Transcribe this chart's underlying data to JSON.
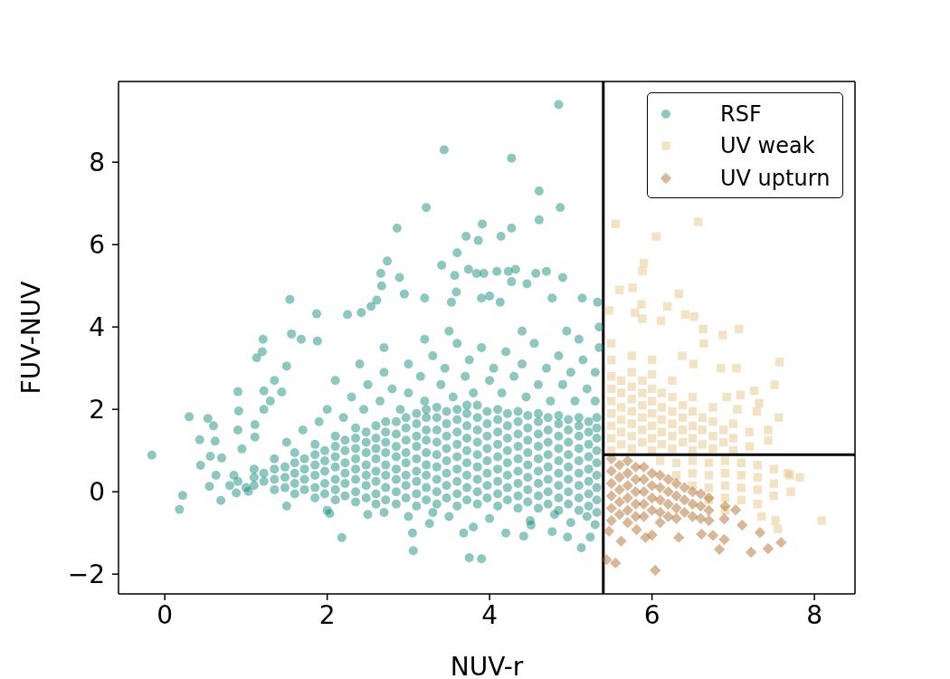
{
  "chart_data": {
    "type": "scatter",
    "xlabel": "NUV-r",
    "ylabel": "FUV-NUV",
    "xlim": [
      -0.57,
      8.5
    ],
    "ylim": [
      -2.48,
      9.96
    ],
    "xticks": [
      0,
      2,
      4,
      6,
      8
    ],
    "yticks": [
      {
        "value": -2,
        "label": "−2"
      },
      0,
      2,
      4,
      6,
      8
    ],
    "legend": "top right",
    "ref_lines": [
      {
        "axis": "x",
        "value": 5.4,
        "color": "#000000"
      }
    ],
    "series": [
      {
        "name": "RSF",
        "color": "#018571",
        "marker": "circle",
        "x": [
          4.85,
          3.44,
          4.27,
          4.61,
          3.22,
          4.87,
          4.61,
          2.86,
          3.91,
          4.27,
          3.71,
          3.86,
          4.14,
          2.74,
          3.41,
          3.6,
          2.66,
          2.89,
          3.74,
          3.84,
          3.93,
          4.09,
          4.23,
          4.32,
          4.57,
          4.7,
          4.9,
          2.67,
          3.57,
          4.27,
          4.46,
          2.95,
          3.2,
          3.59,
          3.53,
          3.9,
          4.0,
          4.13,
          4.77,
          5.14,
          5.33,
          2.25,
          2.42,
          2.54,
          2.61,
          1.54,
          1.87,
          1.21,
          1.56,
          1.68,
          1.88,
          1.2,
          1.13,
          1.5,
          1.35,
          0.9,
          1.22,
          1.3,
          1.44,
          0.91,
          1.22,
          0.3,
          0.53,
          0.6,
          0.43,
          0.62,
          -0.16,
          0.44,
          0.56,
          0.7,
          0.63,
          0.55,
          0.22,
          0.18,
          0.69,
          0.9,
          0.95,
          1.11,
          1.11,
          2.03,
          2.18,
          0.88,
          1.03,
          3.05,
          3.06,
          3.75,
          3.9,
          3.26,
          3.68,
          3.8,
          4.2,
          4.42,
          4.51,
          4.77,
          4.96,
          5.13,
          5.24,
          0.8,
          0.9,
          1.0,
          0.85,
          1.5,
          1.7,
          1.9,
          2.0,
          2.2,
          2.3,
          2.45,
          2.5,
          2.65,
          2.7,
          2.8,
          2.9,
          3.0,
          3.0,
          3.15,
          3.2,
          3.3,
          3.4,
          3.45,
          3.55,
          3.6,
          3.7,
          3.75,
          3.8,
          3.9,
          4.0,
          4.05,
          4.15,
          4.2,
          4.3,
          4.4,
          4.45,
          4.55,
          4.6,
          4.7,
          4.75,
          4.85,
          4.9,
          5.0,
          5.05,
          5.15,
          5.2,
          5.3,
          5.3,
          5.1,
          4.95,
          4.4,
          3.5,
          3.2,
          2.7,
          2.4,
          2.1,
          5.35,
          5.35,
          1.5,
          2.0,
          2.5,
          3.0,
          3.5,
          4.0,
          4.5,
          5.0,
          5.3,
          4.8,
          3.3,
          2.7,
          5.2,
          1.1,
          1.1,
          1.1,
          1.35,
          1.35,
          1.35,
          1.35,
          1.6,
          1.6,
          1.6,
          1.6,
          1.6,
          1.85,
          1.85,
          1.85,
          1.85,
          1.85,
          1.85,
          2.1,
          2.1,
          2.1,
          2.1,
          2.1,
          2.1,
          2.1,
          2.35,
          2.35,
          2.35,
          2.35,
          2.35,
          2.35,
          2.35,
          2.35,
          2.6,
          2.6,
          2.6,
          2.6,
          2.6,
          2.6,
          2.6,
          2.6,
          2.85,
          2.85,
          2.85,
          2.85,
          2.85,
          2.85,
          2.85,
          2.85,
          3.1,
          3.1,
          3.1,
          3.1,
          3.1,
          3.1,
          3.1,
          3.1,
          3.1,
          3.35,
          3.35,
          3.35,
          3.35,
          3.35,
          3.35,
          3.35,
          3.35,
          3.35,
          3.6,
          3.6,
          3.6,
          3.6,
          3.6,
          3.6,
          3.6,
          3.6,
          3.6,
          3.85,
          3.85,
          3.85,
          3.85,
          3.85,
          3.85,
          3.85,
          3.85,
          3.85,
          4.1,
          4.1,
          4.1,
          4.1,
          4.1,
          4.1,
          4.1,
          4.1,
          4.1,
          4.35,
          4.35,
          4.35,
          4.35,
          4.35,
          4.35,
          4.35,
          4.35,
          4.35,
          4.6,
          4.6,
          4.6,
          4.6,
          4.6,
          4.6,
          4.6,
          4.6,
          4.6,
          4.85,
          4.85,
          4.85,
          4.85,
          4.85,
          4.85,
          4.85,
          4.85,
          4.85,
          5.1,
          5.1,
          5.1,
          5.1,
          5.1,
          5.1,
          5.1,
          5.1,
          5.1,
          5.32,
          5.32,
          5.32,
          5.32,
          5.32,
          5.32,
          5.32,
          5.32,
          5.32,
          1.22,
          1.22,
          1.48,
          1.48,
          1.48,
          1.72,
          1.72,
          1.72,
          1.72,
          1.97,
          1.97,
          1.97,
          1.97,
          1.97,
          2.22,
          2.22,
          2.22,
          2.22,
          2.22,
          2.22,
          2.48,
          2.48,
          2.48,
          2.48,
          2.48,
          2.48,
          2.48,
          2.72,
          2.72,
          2.72,
          2.72,
          2.72,
          2.72,
          2.72,
          2.72,
          2.97,
          2.97,
          2.97,
          2.97,
          2.97,
          2.97,
          2.97,
          2.97,
          3.22,
          3.22,
          3.22,
          3.22,
          3.22,
          3.22,
          3.22,
          3.22,
          3.22,
          3.47,
          3.47,
          3.47,
          3.47,
          3.47,
          3.47,
          3.47,
          3.47,
          3.72,
          3.72,
          3.72,
          3.72,
          3.72,
          3.72,
          3.72,
          3.72,
          3.72,
          3.97,
          3.97,
          3.97,
          3.97,
          3.97,
          3.97,
          3.97,
          3.97,
          4.22,
          4.22,
          4.22,
          4.22,
          4.22,
          4.22,
          4.22,
          4.22,
          4.47,
          4.47,
          4.47,
          4.47,
          4.47,
          4.47,
          4.47,
          4.47,
          4.72,
          4.72,
          4.72,
          4.72,
          4.72,
          4.72,
          4.72,
          4.72,
          4.97,
          4.97,
          4.97,
          4.97,
          4.97,
          4.97,
          4.97,
          4.97,
          5.22,
          5.22,
          5.22,
          5.22,
          5.22,
          5.22,
          5.22,
          5.22
        ],
        "values": [
          9.4,
          8.3,
          8.1,
          7.3,
          6.9,
          6.9,
          6.6,
          6.4,
          6.5,
          6.4,
          6.2,
          6.1,
          6.2,
          5.6,
          5.5,
          5.8,
          5.3,
          5.2,
          5.4,
          5.3,
          5.3,
          5.35,
          5.35,
          5.4,
          5.3,
          5.35,
          5.2,
          5.0,
          5.25,
          5.1,
          5.05,
          4.8,
          4.7,
          4.85,
          4.6,
          4.7,
          4.75,
          4.6,
          4.7,
          4.7,
          4.6,
          4.3,
          4.35,
          4.5,
          4.65,
          4.67,
          4.32,
          3.7,
          3.83,
          3.7,
          3.66,
          3.4,
          3.25,
          3.05,
          2.7,
          2.43,
          2.45,
          2.2,
          2.42,
          1.96,
          2.0,
          1.82,
          1.78,
          1.6,
          1.26,
          1.23,
          0.89,
          0.64,
          0.86,
          0.82,
          0.4,
          0.13,
          -0.09,
          -0.43,
          -0.21,
          1.5,
          1.04,
          1.63,
          1.33,
          -0.53,
          -1.11,
          -0.03,
          0.01,
          -1.0,
          -1.43,
          -1.6,
          -1.63,
          -0.77,
          -1.0,
          -0.86,
          -1.0,
          -1.08,
          -0.81,
          -0.97,
          -1.1,
          -1.36,
          -1.1,
          0.15,
          0.25,
          0.1,
          0.4,
          1.2,
          1.5,
          1.7,
          2.0,
          1.8,
          2.3,
          2.0,
          2.6,
          2.2,
          2.9,
          2.5,
          2.0,
          3.1,
          2.4,
          2.8,
          2.2,
          3.3,
          2.6,
          3.0,
          2.3,
          3.6,
          2.8,
          3.2,
          2.4,
          3.5,
          2.7,
          3.0,
          2.4,
          3.4,
          2.8,
          3.1,
          2.3,
          3.6,
          2.6,
          3.0,
          2.2,
          3.3,
          2.6,
          2.9,
          2.2,
          3.2,
          2.5,
          2.9,
          2.2,
          3.7,
          3.9,
          3.9,
          3.9,
          3.7,
          3.5,
          3.1,
          2.7,
          3.5,
          4.0,
          -0.35,
          -0.45,
          -0.55,
          -0.6,
          -0.6,
          -0.65,
          -0.7,
          -0.75,
          -0.8,
          -0.55,
          -0.5,
          -0.5,
          -0.6,
          0.15,
          0.35,
          0.55,
          0.05,
          0.3,
          0.55,
          0.8,
          -0.05,
          0.2,
          0.45,
          0.7,
          0.95,
          -0.15,
          0.1,
          0.4,
          0.65,
          0.9,
          1.15,
          -0.2,
          0.05,
          0.3,
          0.6,
          0.85,
          1.1,
          1.35,
          -0.25,
          0.0,
          0.3,
          0.55,
          0.8,
          1.05,
          1.3,
          1.55,
          -0.3,
          -0.05,
          0.25,
          0.5,
          0.8,
          1.05,
          1.3,
          1.6,
          -0.3,
          0.0,
          0.3,
          0.55,
          0.85,
          1.1,
          1.4,
          1.7,
          -0.35,
          -0.05,
          0.25,
          0.5,
          0.8,
          1.1,
          1.35,
          1.65,
          1.9,
          -0.3,
          0.0,
          0.3,
          0.6,
          0.9,
          1.2,
          1.5,
          1.8,
          2.05,
          -0.35,
          -0.05,
          0.25,
          0.55,
          0.85,
          1.15,
          1.45,
          1.75,
          2.0,
          -0.3,
          0.0,
          0.3,
          0.6,
          0.9,
          1.2,
          1.5,
          1.8,
          2.1,
          -0.35,
          -0.05,
          0.25,
          0.55,
          0.85,
          1.15,
          1.45,
          1.75,
          2.0,
          -0.4,
          -0.1,
          0.2,
          0.5,
          0.8,
          1.1,
          1.4,
          1.7,
          1.95,
          -0.4,
          -0.1,
          0.2,
          0.5,
          0.8,
          1.1,
          1.4,
          1.7,
          1.9,
          -0.45,
          -0.15,
          0.15,
          0.45,
          0.75,
          1.05,
          1.35,
          1.65,
          1.85,
          -0.45,
          -0.15,
          0.15,
          0.45,
          0.75,
          1.05,
          1.35,
          1.6,
          1.8,
          -0.5,
          -0.2,
          0.1,
          0.4,
          0.7,
          1.0,
          1.3,
          1.55,
          1.8,
          0.25,
          0.45,
          0.1,
          0.35,
          0.6,
          0.05,
          0.3,
          0.55,
          0.8,
          -0.05,
          0.2,
          0.5,
          0.75,
          1.0,
          -0.1,
          0.2,
          0.45,
          0.7,
          1.0,
          1.25,
          -0.15,
          0.15,
          0.4,
          0.65,
          0.95,
          1.2,
          1.45,
          -0.2,
          0.1,
          0.4,
          0.65,
          0.95,
          1.2,
          1.45,
          1.7,
          -0.15,
          0.15,
          0.4,
          0.7,
          0.95,
          1.25,
          1.55,
          1.8,
          -0.2,
          0.1,
          0.4,
          0.65,
          0.95,
          1.25,
          1.5,
          1.8,
          2.0,
          -0.15,
          0.15,
          0.45,
          0.75,
          1.05,
          1.35,
          1.65,
          1.95,
          -0.2,
          0.1,
          0.4,
          0.7,
          1.0,
          1.3,
          1.6,
          1.9,
          2.1,
          -0.15,
          0.15,
          0.45,
          0.75,
          1.05,
          1.35,
          1.65,
          1.95,
          -0.2,
          0.1,
          0.4,
          0.7,
          1.0,
          1.3,
          1.6,
          1.9,
          -0.25,
          0.05,
          0.35,
          0.65,
          0.95,
          1.25,
          1.55,
          1.85,
          -0.3,
          0.0,
          0.3,
          0.6,
          0.9,
          1.2,
          1.5,
          1.8,
          -0.3,
          0.0,
          0.3,
          0.6,
          0.9,
          1.2,
          1.5,
          1.75,
          -0.35,
          -0.05,
          0.25,
          0.55,
          0.85,
          1.15,
          1.45,
          1.7
        ]
      },
      {
        "name": "UV weak",
        "color": "#dfc27d",
        "marker": "square",
        "x": [
          5.55,
          6.57,
          6.05,
          5.9,
          5.88,
          5.6,
          5.76,
          6.33,
          5.87,
          5.79,
          5.88,
          5.47,
          6.19,
          6.11,
          6.41,
          6.52,
          6.63,
          6.87,
          7.07,
          7.57,
          7.51,
          7.56,
          8.09,
          7.82,
          7.67,
          7.71,
          7.43,
          7.43,
          7.26,
          7.32,
          7.29,
          7.09,
          7.05,
          6.92,
          7.04,
          6.85,
          6.37,
          6.51,
          6.64,
          7.52,
          7.55,
          7.35,
          5.5,
          5.5,
          5.5,
          5.5,
          5.5,
          5.5,
          5.5,
          5.5,
          5.5,
          5.75,
          5.75,
          5.75,
          5.75,
          5.75,
          5.75,
          5.75,
          5.75,
          6.0,
          6.0,
          6.0,
          6.0,
          6.0,
          6.0,
          6.0,
          6.0,
          6.25,
          6.25,
          6.25,
          6.25,
          6.25,
          6.25,
          6.5,
          6.5,
          6.5,
          6.5,
          6.5,
          6.75,
          6.75,
          6.75,
          6.75,
          7.0,
          7.0,
          7.0,
          7.2,
          7.2,
          5.62,
          5.62,
          5.62,
          5.62,
          5.62,
          5.62,
          5.88,
          5.88,
          5.88,
          5.88,
          5.88,
          5.88,
          6.12,
          6.12,
          6.12,
          6.12,
          6.12,
          6.38,
          6.38,
          6.38,
          6.38,
          6.62,
          6.62,
          6.62,
          6.88,
          6.88,
          6.1,
          6.3,
          6.3,
          6.5,
          6.5,
          6.5,
          6.7,
          6.7,
          6.7,
          6.7,
          6.9,
          6.9,
          6.9,
          6.9,
          6.9,
          7.1,
          7.1,
          7.1,
          7.1,
          7.3,
          7.3,
          7.3,
          7.3,
          7.5,
          7.5,
          7.5,
          7.7
        ],
        "values": [
          6.5,
          6.55,
          6.2,
          5.55,
          5.35,
          4.9,
          4.95,
          4.8,
          4.55,
          4.35,
          4.2,
          4.4,
          4.5,
          4.15,
          4.3,
          4.25,
          3.95,
          3.8,
          3.95,
          3.15,
          2.6,
          1.8,
          -0.7,
          0.35,
          0.45,
          0.0,
          1.5,
          1.25,
          2.45,
          2.15,
          1.95,
          2.35,
          2.0,
          2.3,
          3.0,
          3.0,
          3.3,
          3.1,
          3.6,
          -0.7,
          -0.9,
          -0.6,
          1.0,
          1.3,
          1.6,
          1.9,
          2.2,
          2.5,
          2.8,
          3.2,
          3.6,
          1.05,
          1.35,
          1.65,
          1.95,
          2.25,
          2.55,
          2.9,
          3.3,
          1.0,
          1.3,
          1.6,
          1.9,
          2.2,
          2.5,
          2.85,
          3.2,
          1.05,
          1.35,
          1.65,
          1.95,
          2.3,
          2.7,
          1.0,
          1.3,
          1.6,
          1.95,
          2.3,
          1.05,
          1.35,
          1.7,
          2.05,
          1.0,
          1.3,
          1.65,
          1.1,
          1.45,
          1.15,
          1.45,
          1.75,
          2.05,
          2.4,
          2.7,
          1.2,
          1.5,
          1.8,
          2.1,
          2.4,
          2.7,
          1.15,
          1.45,
          1.75,
          2.05,
          2.4,
          1.2,
          1.5,
          1.8,
          2.1,
          1.15,
          1.5,
          1.8,
          1.2,
          1.5,
          0.75,
          0.7,
          0.4,
          0.75,
          0.45,
          0.15,
          0.7,
          0.4,
          0.1,
          -0.2,
          0.75,
          0.45,
          0.15,
          -0.15,
          -0.45,
          0.7,
          0.4,
          0.1,
          -0.2,
          0.65,
          0.35,
          0.05,
          -0.3,
          0.55,
          0.2,
          -0.1,
          0.4
        ]
      },
      {
        "name": "UV upturn",
        "color": "#a6611a",
        "marker": "diamond",
        "x": [
          5.5,
          5.5,
          5.5,
          5.5,
          5.5,
          5.5,
          5.7,
          5.7,
          5.7,
          5.7,
          5.7,
          5.7,
          5.9,
          5.9,
          5.9,
          5.9,
          5.9,
          6.1,
          6.1,
          6.1,
          6.1,
          6.1,
          6.3,
          6.3,
          6.3,
          6.3,
          6.5,
          6.5,
          6.5,
          6.7,
          6.7,
          6.7,
          6.9,
          5.6,
          5.6,
          5.6,
          5.6,
          5.6,
          5.8,
          5.8,
          5.8,
          5.8,
          5.8,
          6.0,
          6.0,
          6.0,
          6.0,
          6.2,
          6.2,
          6.2,
          6.2,
          6.4,
          6.4,
          6.4,
          6.6,
          6.6,
          6.6,
          5.55,
          6.04,
          5.44,
          5.62,
          5.92,
          6.0,
          5.81,
          5.47,
          6.33,
          6.61,
          6.75,
          6.83,
          6.89,
          7.22,
          7.43,
          7.59,
          7.33,
          7.11,
          6.89,
          7.03
        ],
        "values": [
          0.8,
          0.5,
          0.2,
          -0.1,
          -0.4,
          -0.7,
          0.75,
          0.45,
          0.15,
          -0.15,
          -0.45,
          -0.75,
          0.6,
          0.3,
          0.0,
          -0.3,
          -0.6,
          0.4,
          0.1,
          -0.2,
          -0.5,
          -0.75,
          0.2,
          -0.1,
          -0.4,
          -0.65,
          0.0,
          -0.3,
          -0.6,
          -0.15,
          -0.45,
          -0.7,
          -0.35,
          0.65,
          0.35,
          0.05,
          -0.25,
          -0.55,
          0.6,
          0.3,
          0.0,
          -0.3,
          -0.6,
          0.45,
          0.15,
          -0.15,
          -0.45,
          0.3,
          0.0,
          -0.3,
          -0.6,
          0.1,
          -0.2,
          -0.5,
          -0.05,
          -0.35,
          -0.65,
          -1.73,
          -1.91,
          -1.65,
          -1.2,
          -1.11,
          -1.05,
          -0.92,
          -0.96,
          -1.11,
          -1.03,
          -1.06,
          -1.4,
          -1.16,
          -1.47,
          -1.38,
          -1.23,
          -0.99,
          -0.81,
          -0.66,
          -0.44
        ]
      },
      {
        "type": "line",
        "color": "#000000",
        "x": [
          5.4,
          8.5
        ],
        "values": [
          0.9,
          0.9
        ]
      }
    ]
  }
}
